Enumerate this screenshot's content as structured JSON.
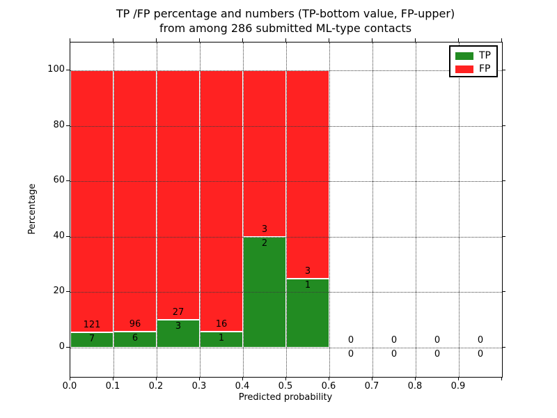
{
  "figure": {
    "title_line1": "TP /FP percentage and numbers (TP-bottom value, FP-upper)",
    "title_line2": "from among 286 submitted ML-type contacts"
  },
  "legend": {
    "tp_label": "TP",
    "fp_label": "FP"
  },
  "colors": {
    "tp": "#228b22",
    "fp": "#ff2222",
    "grid": "#3a3a3a",
    "axis": "#000000",
    "background": "#ffffff"
  },
  "chart_data": {
    "type": "bar",
    "stacked": true,
    "title": "TP /FP percentage and numbers (TP-bottom value, FP-upper)\nfrom among 286 submitted ML-type contacts",
    "xlabel": "Predicted probability",
    "ylabel": "Percentage",
    "xlim": [
      0.0,
      1.0
    ],
    "ylim": [
      -10.5,
      110
    ],
    "grid": true,
    "grid_style": "dotted",
    "legend_position": "upper right",
    "total_contacts": 286,
    "bin_width": 0.1,
    "bin_starts": [
      0.0,
      0.1,
      0.2,
      0.3,
      0.4,
      0.5,
      0.6,
      0.7,
      0.8,
      0.9
    ],
    "x_tick_labels": [
      "0.0",
      "0.1",
      "0.2",
      "0.3",
      "0.4",
      "0.5",
      "0.6",
      "0.7",
      "0.8",
      "0.9"
    ],
    "y_tick_values": [
      0,
      20,
      40,
      60,
      80,
      100
    ],
    "y_tick_labels": [
      "0",
      "20",
      "40",
      "60",
      "80",
      "100"
    ],
    "series": [
      {
        "name": "TP",
        "color": "#228b22",
        "counts": [
          7,
          6,
          3,
          1,
          2,
          1,
          0,
          0,
          0,
          0
        ],
        "percentages": [
          5.47,
          5.88,
          10.0,
          5.88,
          40.0,
          25.0,
          0,
          0,
          0,
          0
        ]
      },
      {
        "name": "FP",
        "color": "#ff2222",
        "counts": [
          121,
          96,
          27,
          16,
          3,
          3,
          0,
          0,
          0,
          0
        ],
        "percentages": [
          94.53,
          94.12,
          90.0,
          94.12,
          60.0,
          75.0,
          0,
          0,
          0,
          0
        ]
      }
    ],
    "annotation_note": "TP count shown below each green bar top, FP count shown above it; zero bins show 0/0 around the baseline"
  }
}
